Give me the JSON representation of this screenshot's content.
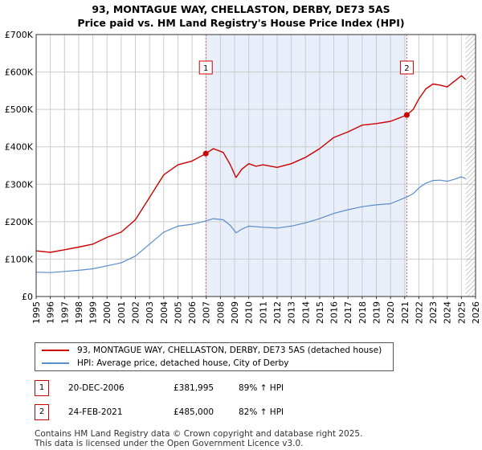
{
  "chart_data": {
    "type": "line",
    "title": "93, MONTAGUE WAY, CHELLASTON, DERBY, DE73 5AS",
    "subtitle": "Price paid vs. HM Land Registry's House Price Index (HPI)",
    "xlabel": "",
    "ylabel": "",
    "xlim": [
      1995,
      2026
    ],
    "ylim": [
      0,
      700000
    ],
    "y_ticks": [
      0,
      100000,
      200000,
      300000,
      400000,
      500000,
      600000,
      700000
    ],
    "y_tick_labels": [
      "£0",
      "£100K",
      "£200K",
      "£300K",
      "£400K",
      "£500K",
      "£600K",
      "£700K"
    ],
    "x_ticks": [
      "1995",
      "1996",
      "1997",
      "1998",
      "1999",
      "2000",
      "2001",
      "2002",
      "2003",
      "2004",
      "2005",
      "2006",
      "2007",
      "2008",
      "2009",
      "2010",
      "2011",
      "2012",
      "2013",
      "2014",
      "2015",
      "2016",
      "2017",
      "2018",
      "2019",
      "2020",
      "2021",
      "2022",
      "2023",
      "2024",
      "2025",
      "2026"
    ],
    "grid": true,
    "shaded_period": [
      2006.97,
      2021.15
    ],
    "data_end": 2025.3,
    "series": [
      {
        "name": "93, MONTAGUE WAY, CHELLASTON, DERBY, DE73 5AS (detached house)",
        "color": "#cc0000",
        "points": [
          [
            1995,
            122000
          ],
          [
            1996,
            118000
          ],
          [
            1997,
            125000
          ],
          [
            1998,
            132000
          ],
          [
            1999,
            140000
          ],
          [
            2000,
            158000
          ],
          [
            2001,
            172000
          ],
          [
            2002,
            205000
          ],
          [
            2003,
            265000
          ],
          [
            2004,
            325000
          ],
          [
            2005,
            352000
          ],
          [
            2006,
            362000
          ],
          [
            2006.97,
            381995
          ],
          [
            2007.5,
            395000
          ],
          [
            2008.2,
            385000
          ],
          [
            2008.7,
            352000
          ],
          [
            2009.1,
            318000
          ],
          [
            2009.5,
            340000
          ],
          [
            2010,
            355000
          ],
          [
            2010.5,
            348000
          ],
          [
            2011,
            352000
          ],
          [
            2012,
            345000
          ],
          [
            2013,
            355000
          ],
          [
            2014,
            372000
          ],
          [
            2015,
            395000
          ],
          [
            2016,
            425000
          ],
          [
            2017,
            440000
          ],
          [
            2018,
            458000
          ],
          [
            2019,
            462000
          ],
          [
            2020,
            468000
          ],
          [
            2021.15,
            485000
          ],
          [
            2021.6,
            500000
          ],
          [
            2022,
            528000
          ],
          [
            2022.5,
            555000
          ],
          [
            2023,
            568000
          ],
          [
            2023.5,
            565000
          ],
          [
            2024,
            560000
          ],
          [
            2024.5,
            575000
          ],
          [
            2025,
            590000
          ],
          [
            2025.3,
            580000
          ]
        ]
      },
      {
        "name": "HPI: Average price, detached house, City of Derby",
        "color": "#5b8dc9",
        "points": [
          [
            1995,
            65000
          ],
          [
            1996,
            64000
          ],
          [
            1997,
            67000
          ],
          [
            1998,
            70000
          ],
          [
            1999,
            74000
          ],
          [
            2000,
            82000
          ],
          [
            2001,
            90000
          ],
          [
            2002,
            108000
          ],
          [
            2003,
            140000
          ],
          [
            2004,
            172000
          ],
          [
            2005,
            188000
          ],
          [
            2006,
            193000
          ],
          [
            2006.97,
            202000
          ],
          [
            2007.5,
            208000
          ],
          [
            2008.2,
            205000
          ],
          [
            2008.7,
            190000
          ],
          [
            2009.1,
            170000
          ],
          [
            2009.5,
            180000
          ],
          [
            2010,
            188000
          ],
          [
            2011,
            185000
          ],
          [
            2012,
            183000
          ],
          [
            2013,
            188000
          ],
          [
            2014,
            197000
          ],
          [
            2015,
            208000
          ],
          [
            2016,
            222000
          ],
          [
            2017,
            232000
          ],
          [
            2018,
            240000
          ],
          [
            2019,
            245000
          ],
          [
            2020,
            248000
          ],
          [
            2021.15,
            266000
          ],
          [
            2021.6,
            275000
          ],
          [
            2022,
            290000
          ],
          [
            2022.5,
            303000
          ],
          [
            2023,
            310000
          ],
          [
            2023.5,
            311000
          ],
          [
            2024,
            308000
          ],
          [
            2024.5,
            313000
          ],
          [
            2025,
            320000
          ],
          [
            2025.3,
            315000
          ]
        ]
      }
    ],
    "sales": [
      {
        "label": "1",
        "x": 2006.97,
        "price": 381995,
        "date": "20-DEC-2006",
        "price_text": "£381,995",
        "hpi_text": "89% ↑ HPI"
      },
      {
        "label": "2",
        "x": 2021.15,
        "price": 485000,
        "date": "24-FEB-2021",
        "price_text": "£485,000",
        "hpi_text": "82% ↑ HPI"
      }
    ]
  },
  "colors": {
    "property_line": "#cc0000",
    "hpi_line": "#5b8dc9",
    "shade": "#e8eefa",
    "marker_border": "#cc0000",
    "vline": "#e07070",
    "grid": "#cccccc"
  },
  "legend": {
    "property": "93, MONTAGUE WAY, CHELLASTON, DERBY, DE73 5AS (detached house)",
    "hpi": "HPI: Average price, detached house, City of Derby"
  },
  "footer": {
    "line1": "Contains HM Land Registry data © Crown copyright and database right 2025.",
    "line2": "This data is licensed under the Open Government Licence v3.0."
  }
}
